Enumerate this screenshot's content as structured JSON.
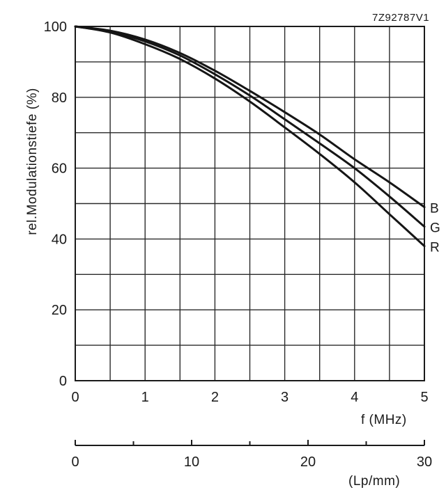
{
  "figure_code": "7Z92787V1",
  "chart_data": {
    "type": "line",
    "ylabel": "rel.Modulationstiefe (%)",
    "xlabel": "f (MHz)",
    "x2label": "(Lp/mm)",
    "xlim": [
      0,
      5
    ],
    "ylim": [
      0,
      100
    ],
    "grid": true,
    "xticks": [
      "0",
      "1",
      "2",
      "3",
      "4",
      "5"
    ],
    "yticks": [
      "0",
      "20",
      "40",
      "60",
      "80",
      "100"
    ],
    "x2ticks": [
      "0",
      "10",
      "20",
      "30"
    ],
    "x2lim": [
      0,
      30
    ],
    "x": [
      0,
      0.5,
      1,
      1.5,
      2,
      2.5,
      3,
      3.5,
      4,
      4.5,
      5
    ],
    "series": [
      {
        "name": "B",
        "values": [
          100,
          98.8,
          96.3,
          92.5,
          87.5,
          81.8,
          75.8,
          69.5,
          62.5,
          56,
          49
        ]
      },
      {
        "name": "G",
        "values": [
          100,
          98.5,
          95.8,
          91.8,
          86.5,
          80.5,
          73.8,
          67,
          60,
          52,
          43.5
        ]
      },
      {
        "name": "R",
        "values": [
          100,
          98.3,
          95,
          90.8,
          85.3,
          78.8,
          71.5,
          64,
          56,
          47,
          38
        ]
      }
    ]
  }
}
